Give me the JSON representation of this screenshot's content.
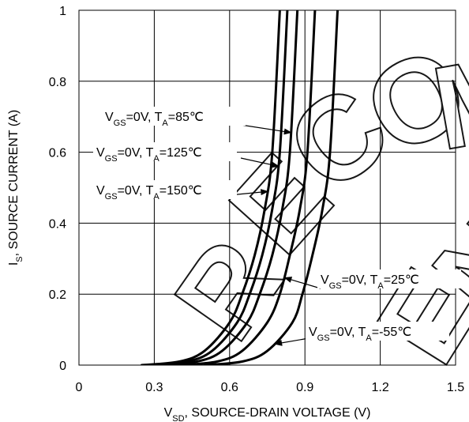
{
  "chart_data": {
    "type": "line",
    "xlabel": {
      "main": "V",
      "sub": "SD",
      "rest": ", SOURCE-DRAIN VOLTAGE (V)"
    },
    "ylabel": {
      "main": "I",
      "sub": "S",
      "rest": ", SOURCE CURRENT (A)"
    },
    "xlim": [
      0,
      1.5
    ],
    "ylim": [
      0,
      1
    ],
    "xticks": [
      0,
      0.3,
      0.6,
      0.9,
      1.2,
      1.5
    ],
    "xtick_labels": [
      "0",
      "0.3",
      "0.6",
      "0.9",
      "1.2",
      "1.5"
    ],
    "yticks": [
      0,
      0.2,
      0.4,
      0.6,
      0.8,
      1
    ],
    "ytick_labels": [
      "0",
      "0.2",
      "0.4",
      "0.6",
      "0.8",
      "1"
    ],
    "grid": true,
    "series": [
      {
        "name": "VGS=0V, TA=150℃",
        "x": [
          0.25,
          0.4,
          0.5,
          0.6,
          0.65,
          0.7,
          0.74,
          0.77,
          0.8
        ],
        "y": [
          0,
          0.01,
          0.04,
          0.12,
          0.2,
          0.31,
          0.44,
          0.6,
          1.0
        ]
      },
      {
        "name": "VGS=0V, TA=125℃",
        "x": [
          0.28,
          0.43,
          0.53,
          0.63,
          0.68,
          0.73,
          0.77,
          0.8,
          0.83
        ],
        "y": [
          0,
          0.01,
          0.04,
          0.12,
          0.2,
          0.31,
          0.44,
          0.6,
          1.0
        ]
      },
      {
        "name": "VGS=0V, TA=85℃",
        "x": [
          0.32,
          0.47,
          0.57,
          0.67,
          0.72,
          0.77,
          0.81,
          0.84,
          0.87
        ],
        "y": [
          0,
          0.01,
          0.04,
          0.12,
          0.2,
          0.31,
          0.44,
          0.6,
          1.0
        ]
      },
      {
        "name": "VGS=0V, TA=25℃",
        "x": [
          0.4,
          0.55,
          0.65,
          0.75,
          0.8,
          0.84,
          0.88,
          0.91,
          0.94
        ],
        "y": [
          0,
          0.01,
          0.04,
          0.12,
          0.2,
          0.31,
          0.44,
          0.6,
          1.0
        ]
      },
      {
        "name": "VGS=0V, TA=-55℃",
        "x": [
          0.5,
          0.65,
          0.75,
          0.85,
          0.89,
          0.93,
          0.97,
          1.0,
          1.03
        ],
        "y": [
          0,
          0.01,
          0.04,
          0.12,
          0.2,
          0.31,
          0.44,
          0.6,
          1.0
        ]
      }
    ],
    "annotations": [
      {
        "series": 2,
        "text": {
          "p1": "V",
          "s1": "GS",
          "p2": "=0V, T",
          "s2": "A",
          "p3": "=85℃"
        }
      },
      {
        "series": 1,
        "text": {
          "p1": "V",
          "s1": "GS",
          "p2": "=0V, T",
          "s2": "A",
          "p3": "=125℃"
        }
      },
      {
        "series": 0,
        "text": {
          "p1": "V",
          "s1": "GS",
          "p2": "=0V, T",
          "s2": "A",
          "p3": "=150℃"
        }
      },
      {
        "series": 3,
        "text": {
          "p1": "V",
          "s1": "GS",
          "p2": "=0V, T",
          "s2": "A",
          "p3": "=25℃"
        }
      },
      {
        "series": 4,
        "text": {
          "p1": "V",
          "s1": "GS",
          "p2": "=0V, T",
          "s2": "A",
          "p3": "=-55℃"
        }
      }
    ],
    "watermark": "RECOMMENDED NEW"
  }
}
